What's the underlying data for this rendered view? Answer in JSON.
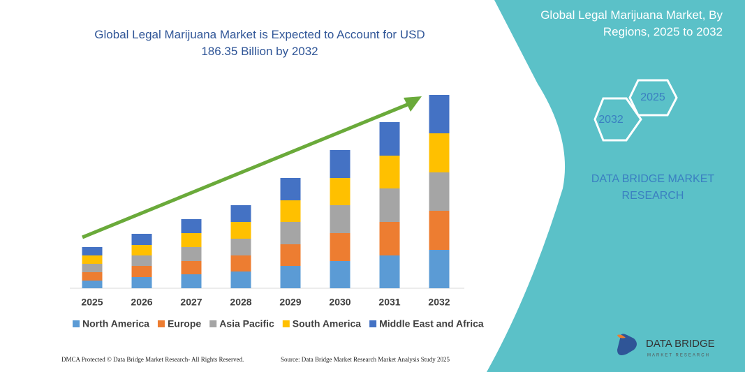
{
  "chart_data": {
    "type": "stacked_bar",
    "title": "Global Legal Marijuana Market is Expected to Account for USD 186.35 Billion by 2032",
    "categories": [
      "2025",
      "2026",
      "2027",
      "2028",
      "2029",
      "2030",
      "2031",
      "2032"
    ],
    "series": [
      {
        "name": "North America",
        "color": "#5b9bd5",
        "values": [
          11,
          16,
          20,
          24,
          32,
          39,
          47,
          55
        ]
      },
      {
        "name": "Europe",
        "color": "#ed7d31",
        "values": [
          12,
          16,
          19,
          23,
          31,
          40,
          48,
          56
        ]
      },
      {
        "name": "Asia Pacific",
        "color": "#a5a5a5",
        "values": [
          12,
          15,
          20,
          24,
          32,
          40,
          48,
          55
        ]
      },
      {
        "name": "South America",
        "color": "#ffc000",
        "values": [
          12,
          15,
          20,
          24,
          31,
          39,
          47,
          56
        ]
      },
      {
        "name": "Middle East and Africa",
        "color": "#4472c4",
        "values": [
          12,
          16,
          20,
          24,
          32,
          40,
          48,
          55
        ]
      }
    ]
  },
  "panel": {
    "title": "Global Legal Marijuana Market, By Regions, 2025 to 2032",
    "hex_small": "2025",
    "hex_large": "2032",
    "brand": "DATA BRIDGE MARKET RESEARCH"
  },
  "logo": {
    "name": "DATA BRIDGE",
    "tagline": "MARKET RESEARCH"
  },
  "footer": {
    "left": "DMCA Protected © Data Bridge Market Research- All Rights Reserved.",
    "right": "Source: Data Bridge Market Research Market Analysis Study 2025"
  }
}
